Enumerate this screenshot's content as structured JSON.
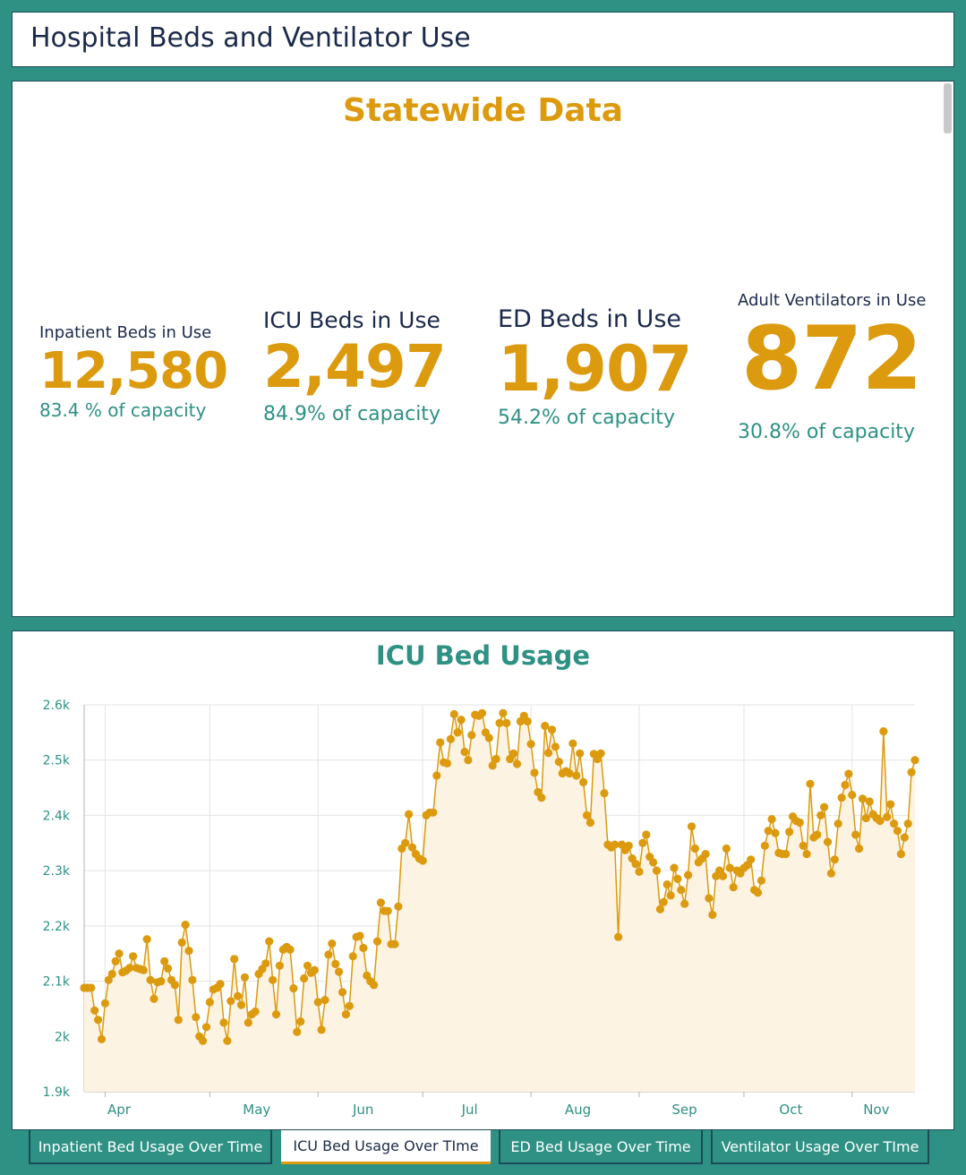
{
  "header": {
    "title": "Hospital Beds and Ventilator Use"
  },
  "statewide": {
    "title": "Statewide Data",
    "stats": [
      {
        "label": "Inpatient Beds in Use",
        "value": "12,580",
        "capacity": "83.4 % of capacity"
      },
      {
        "label": "ICU Beds in Use",
        "value": "2,497",
        "capacity": "84.9% of capacity"
      },
      {
        "label": "ED Beds in Use",
        "value": "1,907",
        "capacity": "54.2% of capacity"
      },
      {
        "label": "Adult Ventilators in Use",
        "value": "872",
        "capacity": "30.8% of capacity"
      }
    ]
  },
  "colors": {
    "accent": "#dc9a0f",
    "teal": "#2e9184",
    "navy": "#1b2a4a",
    "fill": "#fdf3e2"
  },
  "chart_data": {
    "type": "area",
    "title": "ICU Bed Usage",
    "xlabel": "",
    "ylabel": "",
    "ylim": [
      1900,
      2600
    ],
    "yticks": [
      "1.9k",
      "2k",
      "2.1k",
      "2.2k",
      "2.3k",
      "2.4k",
      "2.5k",
      "2.6k"
    ],
    "xticks": [
      "Apr",
      "May",
      "Jun",
      "Jul",
      "Aug",
      "Sep",
      "Oct",
      "Nov"
    ],
    "grid": true,
    "x_start": "2020-03-26",
    "series": [
      {
        "values": [
          2088,
          2088,
          2088,
          2047,
          2030,
          1995,
          2060,
          2102,
          2113,
          2136,
          2150,
          2116,
          2119,
          2124,
          2145,
          2124,
          2122,
          2120,
          2176,
          2102,
          2068,
          2098,
          2100,
          2136,
          2123,
          2102,
          2093,
          2030,
          2170,
          2202,
          2155,
          2102,
          2035,
          2000,
          1992,
          2017,
          2062,
          2085,
          2088,
          2095,
          2025,
          1992,
          2064,
          2140,
          2073,
          2057,
          2107,
          2025,
          2040,
          2045,
          2113,
          2122,
          2132,
          2172,
          2102,
          2040,
          2128,
          2157,
          2162,
          2157,
          2087,
          2008,
          2027,
          2105,
          2128,
          2115,
          2120,
          2062,
          2012,
          2066,
          2148,
          2168,
          2131,
          2117,
          2080,
          2040,
          2055,
          2145,
          2180,
          2182,
          2160,
          2110,
          2100,
          2093,
          2172,
          2242,
          2227,
          2227,
          2167,
          2167,
          2235,
          2340,
          2350,
          2402,
          2342,
          2330,
          2322,
          2318,
          2400,
          2405,
          2405,
          2472,
          2532,
          2496,
          2494,
          2538,
          2583,
          2550,
          2573,
          2515,
          2500,
          2545,
          2582,
          2580,
          2585,
          2550,
          2540,
          2490,
          2502,
          2567,
          2585,
          2567,
          2502,
          2512,
          2493,
          2570,
          2580,
          2570,
          2529,
          2477,
          2442,
          2432,
          2562,
          2513,
          2555,
          2524,
          2497,
          2476,
          2480,
          2476,
          2530,
          2472,
          2512,
          2460,
          2400,
          2387,
          2511,
          2502,
          2512,
          2440,
          2347,
          2342,
          2347,
          2180,
          2347,
          2337,
          2345,
          2322,
          2312,
          2298,
          2350,
          2365,
          2325,
          2315,
          2300,
          2230,
          2243,
          2275,
          2255,
          2305,
          2285,
          2265,
          2240,
          2292,
          2380,
          2340,
          2315,
          2322,
          2330,
          2250,
          2220,
          2290,
          2300,
          2290,
          2340,
          2305,
          2270,
          2300,
          2295,
          2305,
          2310,
          2320,
          2265,
          2260,
          2282,
          2345,
          2372,
          2393,
          2368,
          2332,
          2330,
          2330,
          2370,
          2398,
          2390,
          2387,
          2345,
          2330,
          2457,
          2360,
          2365,
          2400,
          2415,
          2352,
          2295,
          2320,
          2385,
          2432,
          2455,
          2475,
          2437,
          2365,
          2340,
          2430,
          2395,
          2425,
          2402,
          2395,
          2390,
          2552,
          2397,
          2420,
          2385,
          2372,
          2330,
          2360,
          2385,
          2478,
          2500
        ]
      }
    ]
  },
  "tabs": [
    {
      "label": "Inpatient Bed Usage Over Time"
    },
    {
      "label": "ICU Bed Usage Over TIme"
    },
    {
      "label": "ED Bed Usage Over Time"
    },
    {
      "label": "Ventilator Usage Over TIme"
    }
  ]
}
